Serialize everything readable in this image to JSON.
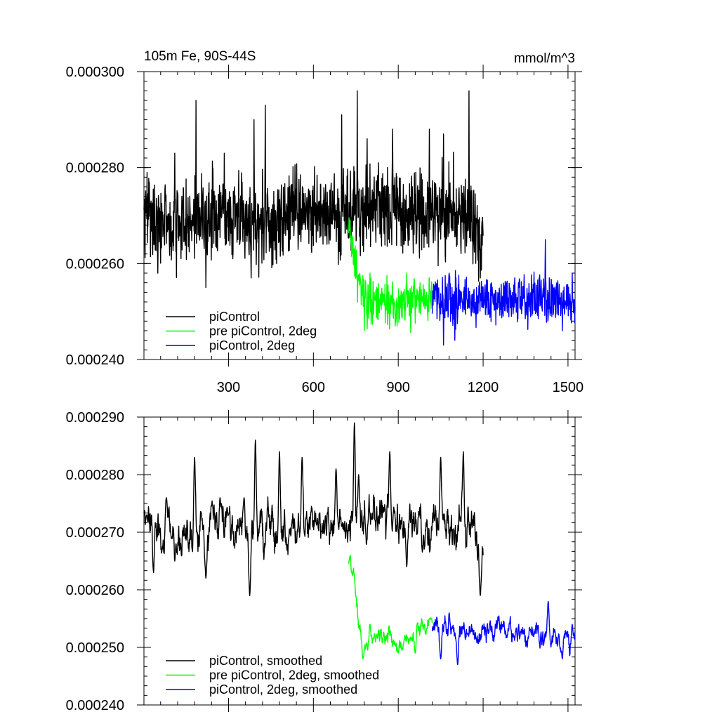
{
  "chart_data": [
    {
      "type": "line",
      "title_left": "105m Fe, 90S-44S",
      "title_right": "mmol/m^3",
      "xlim": [
        1,
        1525
      ],
      "ylim": [
        0.00024,
        0.0003
      ],
      "x_ticks": [
        300,
        600,
        900,
        1200,
        1500
      ],
      "x_tick_labels": [
        "300",
        "600",
        "900",
        "1200",
        "1500"
      ],
      "y_ticks": [
        0.00024,
        0.00026,
        0.00028,
        0.0003
      ],
      "y_tick_labels": [
        "0.000240",
        "0.000260",
        "0.000280",
        "0.000300"
      ],
      "legend_position": "bottom-left",
      "series": [
        {
          "name": "piControl",
          "color": "#000000",
          "x_start": 1,
          "x_end": 1200,
          "baseline": [
            [
              1,
              0.000271
            ],
            [
              100,
              0.000268
            ],
            [
              200,
              0.000269
            ],
            [
              300,
              0.000271
            ],
            [
              400,
              0.000267
            ],
            [
              500,
              0.00027
            ],
            [
              600,
              0.000271
            ],
            [
              700,
              0.00027
            ],
            [
              800,
              0.000272
            ],
            [
              900,
              0.000271
            ],
            [
              1000,
              0.00027
            ],
            [
              1100,
              0.000271
            ],
            [
              1150,
              0.00027
            ],
            [
              1200,
              0.000262
            ]
          ],
          "amplitude": 5.5e-06,
          "extremes": [
            [
              20,
              0.000277
            ],
            [
              50,
              0.000258
            ],
            [
              70,
              0.000268
            ],
            [
              110,
              0.000283
            ],
            [
              185,
              0.000294
            ],
            [
              220,
              0.000255
            ],
            [
              285,
              0.000283
            ],
            [
              380,
              0.000257
            ],
            [
              390,
              0.00029
            ],
            [
              430,
              0.000293
            ],
            [
              470,
              0.00026
            ],
            [
              700,
              0.000291
            ],
            [
              755,
              0.000296
            ],
            [
              790,
              0.000286
            ],
            [
              830,
              0.000281
            ],
            [
              880,
              0.000288
            ],
            [
              950,
              0.000276
            ],
            [
              1010,
              0.000288
            ],
            [
              1060,
              0.000287
            ],
            [
              1150,
              0.000296
            ],
            [
              1190,
              0.000257
            ]
          ]
        },
        {
          "name": "pre piControl, 2deg",
          "color": "#00ff00",
          "x_start": 725,
          "x_end": 1020,
          "baseline": [
            [
              725,
              0.000268
            ],
            [
              740,
              0.000263
            ],
            [
              760,
              0.000256
            ],
            [
              800,
              0.000252
            ],
            [
              850,
              0.000252
            ],
            [
              900,
              0.000252
            ],
            [
              950,
              0.000252
            ],
            [
              1020,
              0.000253
            ]
          ],
          "amplitude": 3e-06,
          "extremes": [
            [
              730,
              0.000269
            ],
            [
              780,
              0.000246
            ],
            [
              800,
              0.000258
            ],
            [
              870,
              0.000247
            ],
            [
              930,
              0.000258
            ],
            [
              1010,
              0.000257
            ]
          ]
        },
        {
          "name": "piControl, 2deg",
          "color": "#0000ff",
          "x_start": 1020,
          "x_end": 1525,
          "baseline": [
            [
              1020,
              0.000253
            ],
            [
              1100,
              0.000252
            ],
            [
              1200,
              0.000253
            ],
            [
              1300,
              0.000252
            ],
            [
              1400,
              0.000253
            ],
            [
              1525,
              0.000251
            ]
          ],
          "amplitude": 3e-06,
          "extremes": [
            [
              1060,
              0.000243
            ],
            [
              1080,
              0.000258
            ],
            [
              1100,
              0.000244
            ],
            [
              1230,
              0.000256
            ],
            [
              1420,
              0.000265
            ],
            [
              1480,
              0.000246
            ],
            [
              1515,
              0.000258
            ]
          ]
        }
      ]
    },
    {
      "type": "line",
      "xlim": [
        1,
        1525
      ],
      "ylim": [
        0.00024,
        0.00029
      ],
      "x_ticks": [
        300,
        600,
        900,
        1200,
        1500
      ],
      "y_ticks": [
        0.00024,
        0.00025,
        0.00026,
        0.00027,
        0.00028,
        0.00029
      ],
      "y_tick_labels": [
        "0.000240",
        "0.000250",
        "0.000260",
        "0.000270",
        "0.000280",
        "0.000290"
      ],
      "legend_position": "bottom-left",
      "series": [
        {
          "name": "piControl, smoothed",
          "color": "#000000",
          "x_start": 1,
          "x_end": 1200,
          "baseline": [
            [
              1,
              0.000272
            ],
            [
              100,
              0.00027
            ],
            [
              200,
              0.00027
            ],
            [
              300,
              0.000272
            ],
            [
              400,
              0.000268
            ],
            [
              500,
              0.000271
            ],
            [
              600,
              0.000272
            ],
            [
              700,
              0.000271
            ],
            [
              800,
              0.000273
            ],
            [
              900,
              0.000272
            ],
            [
              1000,
              0.000271
            ],
            [
              1100,
              0.000271
            ],
            [
              1170,
              0.00027
            ],
            [
              1200,
              0.000264
            ]
          ],
          "amplitude": 3.5e-06,
          "extremes": [
            [
              10,
              0.000273
            ],
            [
              35,
              0.000263
            ],
            [
              80,
              0.000276
            ],
            [
              110,
              0.000265
            ],
            [
              180,
              0.000283
            ],
            [
              220,
              0.000262
            ],
            [
              270,
              0.000276
            ],
            [
              300,
              0.000273
            ],
            [
              355,
              0.000276
            ],
            [
              375,
              0.000259
            ],
            [
              395,
              0.000286
            ],
            [
              480,
              0.000284
            ],
            [
              560,
              0.000283
            ],
            [
              680,
              0.000281
            ],
            [
              700,
              0.000271
            ],
            [
              745,
              0.000289
            ],
            [
              760,
              0.00028
            ],
            [
              870,
              0.000284
            ],
            [
              930,
              0.000264
            ],
            [
              1050,
              0.000283
            ],
            [
              1130,
              0.000284
            ],
            [
              1190,
              0.000259
            ]
          ]
        },
        {
          "name": "pre piControl, 2deg, smoothed",
          "color": "#00ff00",
          "x_start": 725,
          "x_end": 1020,
          "baseline": [
            [
              725,
              0.000264
            ],
            [
              745,
              0.000262
            ],
            [
              760,
              0.000255
            ],
            [
              780,
              0.000251
            ],
            [
              830,
              0.000253
            ],
            [
              900,
              0.000251
            ],
            [
              960,
              0.000252
            ],
            [
              1020,
              0.000254
            ]
          ],
          "amplitude": 1.5e-06,
          "extremes": [
            [
              730,
              0.000266
            ],
            [
              775,
              0.000248
            ],
            [
              800,
              0.000254
            ],
            [
              900,
              0.000249
            ],
            [
              960,
              0.000249
            ],
            [
              1010,
              0.000255
            ]
          ]
        },
        {
          "name": "piControl, 2deg, smoothed",
          "color": "#0000ff",
          "x_start": 1020,
          "x_end": 1525,
          "baseline": [
            [
              1020,
              0.000253
            ],
            [
              1100,
              0.000252
            ],
            [
              1200,
              0.000253
            ],
            [
              1300,
              0.000253
            ],
            [
              1400,
              0.000252
            ],
            [
              1525,
              0.000252
            ]
          ],
          "amplitude": 1.8e-06,
          "extremes": [
            [
              1050,
              0.000248
            ],
            [
              1080,
              0.000256
            ],
            [
              1110,
              0.000247
            ],
            [
              1430,
              0.000258
            ],
            [
              1480,
              0.000248
            ],
            [
              1515,
              0.000254
            ]
          ]
        }
      ]
    }
  ]
}
